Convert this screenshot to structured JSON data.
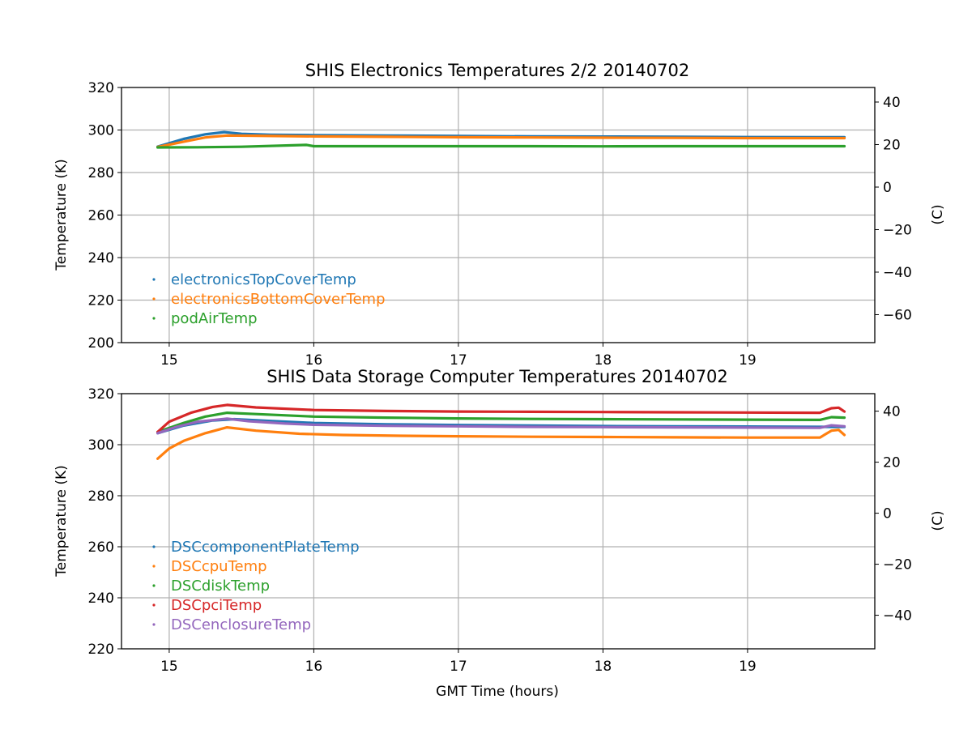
{
  "chart_data": [
    {
      "type": "line",
      "title": "SHIS Electronics Temperatures 2/2 20140702",
      "xlabel": "",
      "ylabel": "Temperature (K)",
      "ylabel_right": "(C)",
      "xlim": [
        14.67,
        19.88
      ],
      "ylim": [
        200,
        320
      ],
      "ylim_right_c": [
        -73.15,
        46.85
      ],
      "xticks": [
        "15",
        "16",
        "17",
        "18",
        "19"
      ],
      "yticks": [
        "200",
        "220",
        "240",
        "260",
        "280",
        "300",
        "320"
      ],
      "yticks_right": [
        "−60",
        "−40",
        "−20",
        "0",
        "20",
        "40"
      ],
      "grid": true,
      "legend_position": "lower-left",
      "series": [
        {
          "name": "electronicsTopCoverTemp",
          "color": "#1f77b4",
          "x": [
            14.92,
            15.1,
            15.25,
            15.38,
            15.5,
            15.7,
            16.0,
            16.5,
            17.0,
            17.5,
            18.0,
            18.5,
            19.0,
            19.5,
            19.67
          ],
          "values": [
            292.2,
            295.8,
            298.0,
            299.0,
            298.2,
            297.8,
            297.6,
            297.4,
            297.2,
            297.0,
            296.9,
            296.8,
            296.7,
            296.6,
            296.6
          ]
        },
        {
          "name": "electronicsBottomCoverTemp",
          "color": "#ff7f0e",
          "x": [
            14.92,
            15.1,
            15.25,
            15.4,
            15.6,
            16.0,
            16.5,
            17.0,
            17.5,
            18.0,
            18.5,
            19.0,
            19.5,
            19.67
          ],
          "values": [
            292.0,
            294.5,
            296.5,
            297.4,
            297.3,
            297.0,
            296.8,
            296.6,
            296.5,
            296.4,
            296.3,
            296.2,
            296.2,
            296.2
          ]
        },
        {
          "name": "podAirTemp",
          "color": "#2ca02c",
          "x": [
            14.92,
            15.2,
            15.5,
            15.95,
            16.0,
            16.5,
            17.0,
            17.5,
            18.0,
            18.5,
            19.0,
            19.5,
            19.67
          ],
          "values": [
            291.8,
            291.9,
            292.1,
            293.0,
            292.4,
            292.4,
            292.4,
            292.4,
            292.3,
            292.4,
            292.4,
            292.4,
            292.4
          ]
        }
      ]
    },
    {
      "type": "line",
      "title": "SHIS Data Storage Computer Temperatures 20140702",
      "xlabel": "GMT Time (hours)",
      "ylabel": "Temperature (K)",
      "ylabel_right": "(C)",
      "xlim": [
        14.67,
        19.88
      ],
      "ylim": [
        220,
        320
      ],
      "ylim_right_c": [
        -53.15,
        46.85
      ],
      "xticks": [
        "15",
        "16",
        "17",
        "18",
        "19"
      ],
      "yticks": [
        "220",
        "240",
        "260",
        "280",
        "300",
        "320"
      ],
      "yticks_right": [
        "−40",
        "−20",
        "0",
        "20",
        "40"
      ],
      "grid": true,
      "legend_position": "lower-left",
      "series": [
        {
          "name": "DSCcomponentPlateTemp",
          "color": "#1f77b4",
          "x": [
            14.92,
            15.1,
            15.3,
            15.45,
            15.7,
            16.0,
            16.5,
            17.0,
            17.5,
            18.0,
            18.5,
            19.0,
            19.5,
            19.67
          ],
          "values": [
            304.5,
            307.5,
            309.5,
            310.0,
            309.3,
            308.5,
            308.0,
            307.7,
            307.5,
            307.3,
            307.2,
            307.1,
            307.0,
            307.0
          ]
        },
        {
          "name": "DSCcpuTemp",
          "color": "#ff7f0e",
          "x": [
            14.92,
            15.0,
            15.1,
            15.25,
            15.4,
            15.6,
            15.9,
            16.2,
            16.6,
            17.0,
            17.5,
            18.0,
            18.5,
            19.0,
            19.5,
            19.58,
            19.63,
            19.67
          ],
          "values": [
            294.5,
            298.5,
            301.5,
            304.5,
            306.8,
            305.5,
            304.3,
            303.8,
            303.5,
            303.3,
            303.1,
            303.0,
            302.9,
            302.8,
            302.8,
            305.5,
            305.8,
            303.8
          ]
        },
        {
          "name": "DSCdiskTemp",
          "color": "#2ca02c",
          "x": [
            14.92,
            15.1,
            15.25,
            15.4,
            15.6,
            16.0,
            16.5,
            17.0,
            17.5,
            18.0,
            18.5,
            19.0,
            19.5,
            19.58,
            19.67
          ],
          "values": [
            305.0,
            308.5,
            311.0,
            312.5,
            312.0,
            311.0,
            310.6,
            310.3,
            310.1,
            310.0,
            309.9,
            309.8,
            309.7,
            310.8,
            310.6
          ]
        },
        {
          "name": "DSCpciTemp",
          "color": "#d62728",
          "x": [
            14.92,
            15.0,
            15.15,
            15.3,
            15.4,
            15.6,
            16.0,
            16.5,
            17.0,
            17.5,
            18.0,
            18.5,
            19.0,
            19.5,
            19.58,
            19.63,
            19.67
          ],
          "values": [
            305.0,
            309.0,
            312.5,
            314.8,
            315.6,
            314.6,
            313.6,
            313.2,
            313.0,
            312.9,
            312.8,
            312.7,
            312.6,
            312.5,
            314.3,
            314.5,
            313.0
          ]
        },
        {
          "name": "DSCenclosureTemp",
          "color": "#9467bd",
          "x": [
            14.92,
            15.05,
            15.2,
            15.4,
            15.55,
            15.8,
            16.0,
            16.5,
            17.0,
            17.5,
            18.0,
            18.5,
            19.0,
            19.5,
            19.58,
            19.67
          ],
          "values": [
            304.5,
            307.0,
            309.0,
            310.2,
            309.2,
            308.3,
            307.8,
            307.4,
            307.2,
            307.0,
            306.9,
            306.8,
            306.7,
            306.6,
            307.6,
            307.2
          ]
        }
      ]
    }
  ]
}
